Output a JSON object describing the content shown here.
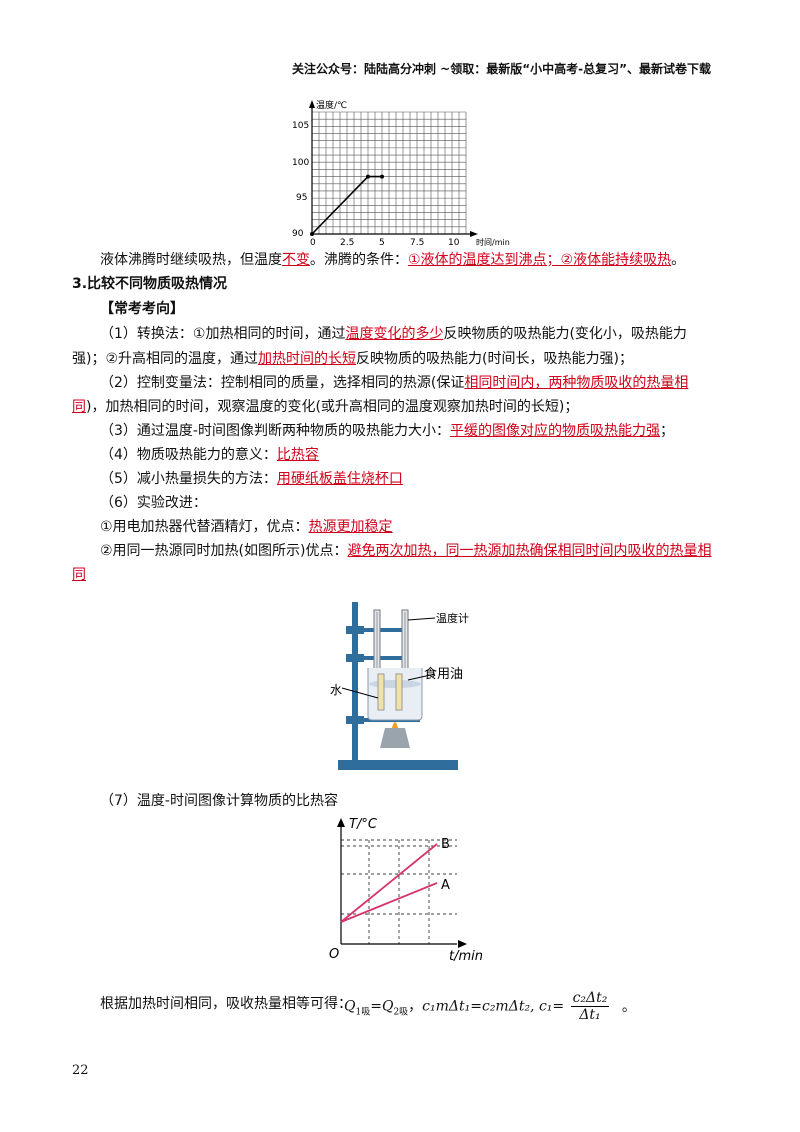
{
  "header": "关注公众号：陆陆高分冲刺 ~领取：最新版“小中高考-总复习”、最新试卷下载",
  "chart1": {
    "ylabel": "温度/℃",
    "xlabel": "时间/min",
    "yticks": [
      "90",
      "95",
      "100",
      "105"
    ],
    "xticks": [
      "0",
      "2.5",
      "5",
      "7.5",
      "10"
    ]
  },
  "chart_data": [
    {
      "type": "line",
      "title": "",
      "xlabel": "时间/min",
      "ylabel": "温度/℃",
      "x": [
        0,
        4,
        5
      ],
      "y": [
        90,
        98,
        98
      ],
      "xlim": [
        0,
        11
      ],
      "ylim": [
        90,
        107
      ],
      "grid": true
    },
    {
      "type": "line",
      "title": "",
      "xlabel": "t/min",
      "ylabel": "T/°C",
      "series": [
        {
          "name": "B",
          "x": [
            0,
            1
          ],
          "y": [
            0,
            1
          ]
        },
        {
          "name": "A",
          "x": [
            0,
            1
          ],
          "y": [
            0,
            0.5
          ]
        }
      ],
      "grid": true
    }
  ],
  "text": {
    "l1a": "液体沸腾时继续吸热，但温度",
    "l1b": "不变",
    "l1c": "。沸腾的条件：",
    "l1d": "①液体的温度达到沸点；②液体能持续吸热",
    "l1e": "。",
    "sec3": "3.比较不同物质吸热情况",
    "sub": "【常考考向】",
    "p1a": "（1）转换法：①加热相同的时间，通过",
    "p1b": "温度变化的多少",
    "p1c": "反映物质的吸热能力(变化小，吸热能力",
    "p1d": "强)；②升高相同的温度，通过",
    "p1e": "加热时间的长短",
    "p1f": "反映物质的吸热能力(时间长，吸热能力强)；",
    "p2a": "（2）控制变量法：控制相同的质量，选择相同的热源(保证",
    "p2b": "相同时间内，两种物质吸收的热量相",
    "p2c": "同",
    "p2d": ")，加热相同的时间，观察温度的变化(或升高相同的温度观察加热时间的长短)；",
    "p3a": "（3）通过温度-时间图像判断两种物质的吸热能力大小：",
    "p3b": "平缓的图像对应的物质吸热能力强",
    "p3c": "；",
    "p4a": "（4）物质吸热能力的意义：",
    "p4b": "比热容",
    "p5a": "（5）减小热量损失的方法：",
    "p5b": "用硬纸板盖住烧杯口",
    "p6": "（6）实验改进：",
    "p6_1a": "①用电加热器代替酒精灯，优点：",
    "p6_1b": "热源更加稳定",
    "p6_2a": "②用同一热源同时加热(如图所示)优点：",
    "p6_2b": "避免两次加热，同一热源加热确保相同时间内吸收的热量相",
    "p6_2c": "同",
    "p7": "（7）温度-时间图像计算物质的比热容",
    "last": "根据加热时间相同，吸收热量相等可得："
  },
  "apparatus": {
    "thermometer": "温度计",
    "oil": "食用油",
    "water": "水"
  },
  "chart2": {
    "ylabel": "T/°C",
    "xlabel": "t/min",
    "origin": "O",
    "lineB": "B",
    "lineA": "A"
  },
  "formula": {
    "Q1": "Q",
    "sub1": "1吸",
    "eq": "=",
    "Q2": "Q",
    "sub2": "2吸",
    "comma": "，",
    "expr": "c₁mΔt₁=c₂mΔt₂, c₁=",
    "num": "c₂Δt₂",
    "den": "Δt₁",
    "end": "。"
  },
  "page_number": "22"
}
